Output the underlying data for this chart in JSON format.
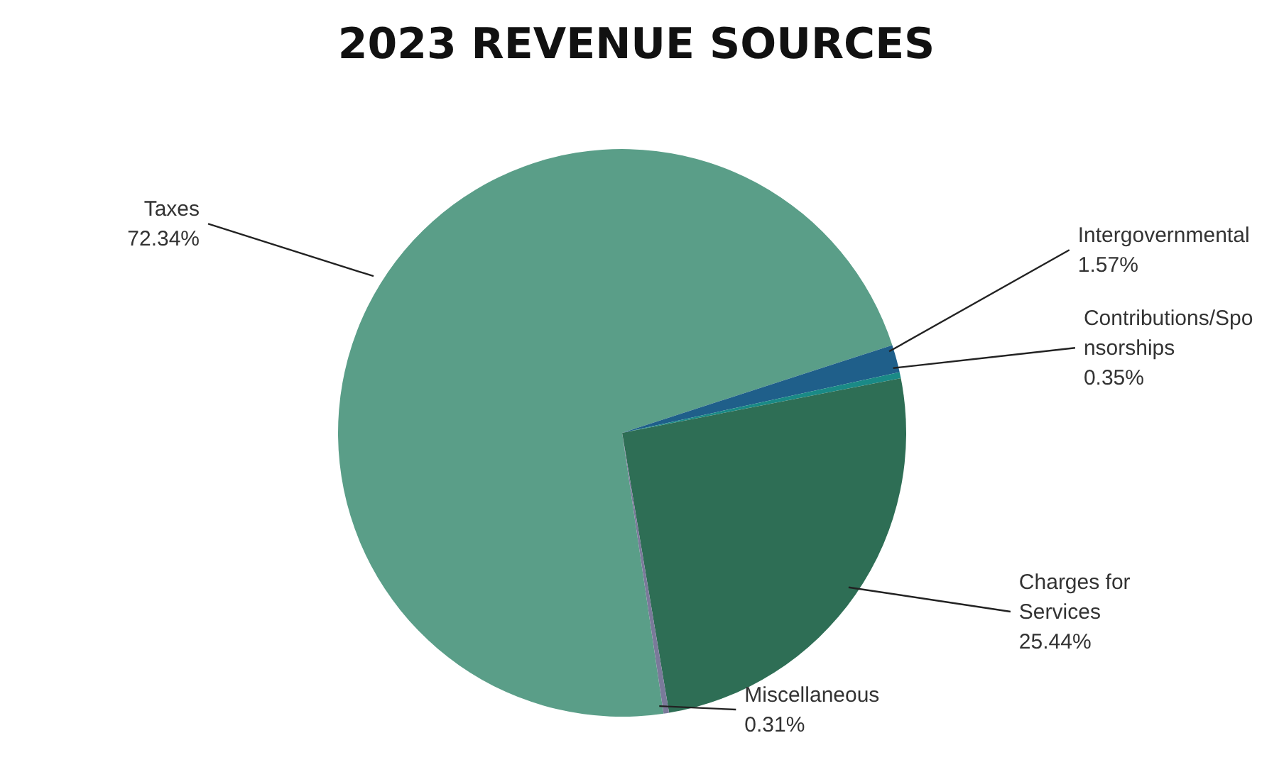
{
  "chart_data": {
    "type": "pie",
    "title": "2023 REVENUE SOURCES",
    "categories": [
      "Taxes",
      "Intergovernmental",
      "Contributions/Sponsorships",
      "Charges for Services",
      "Miscellaneous"
    ],
    "values": [
      72.34,
      1.57,
      0.35,
      25.44,
      0.31
    ],
    "value_labels": [
      "72.34%",
      "1.57%",
      "0.35%",
      "25.44%",
      "0.31%"
    ],
    "colors": [
      "#5a9e88",
      "#1f5f8a",
      "#1a8a86",
      "#2e6e55",
      "#7a7a9a"
    ],
    "legend": false
  }
}
